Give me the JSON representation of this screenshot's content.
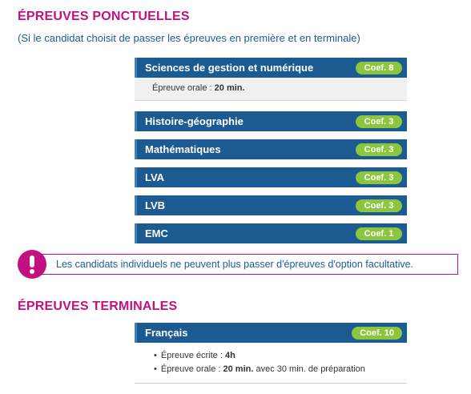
{
  "sections": [
    {
      "title": "ÉPREUVES PONCTUELLES",
      "subtitle": "(Si le candidat choisit de passer les épreuves en première et en terminale)",
      "subjects": [
        {
          "name": "Sciences de gestion et numérique",
          "coef": "Coef. 8",
          "details": [
            {
              "label": "Épreuve orale : ",
              "bold": "20 min."
            }
          ]
        },
        {
          "name": "Histoire-géographie",
          "coef": "Coef. 3"
        },
        {
          "name": "Mathématiques",
          "coef": "Coef. 3"
        },
        {
          "name": "LVA",
          "coef": "Coef. 3"
        },
        {
          "name": "LVB",
          "coef": "Coef. 3"
        },
        {
          "name": "EMC",
          "coef": "Coef. 1"
        }
      ]
    },
    {
      "title": "ÉPREUVES TERMINALES",
      "subjects": [
        {
          "name": "Français",
          "coef": "Coef. 10",
          "details": [
            {
              "label": "Épreuve écrite : ",
              "bold": "4h"
            },
            {
              "label": "Épreuve orale : ",
              "bold": "20 min.",
              "after": " avec 30 min. de préparation"
            }
          ]
        }
      ]
    }
  ],
  "notice": "Les candidats individuels ne peuvent plus passer d'épreuves d'option facultative."
}
